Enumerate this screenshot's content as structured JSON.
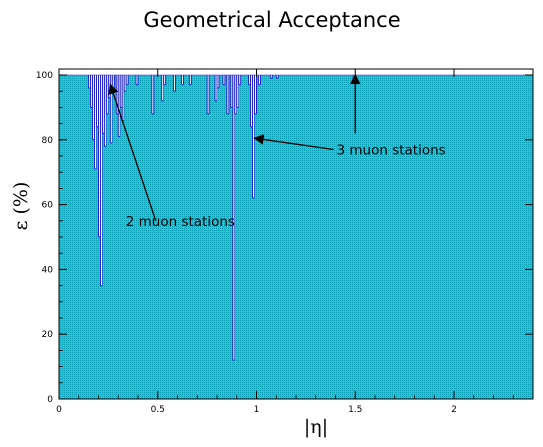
{
  "chart_data": {
    "type": "bar",
    "title": "Geometrical Acceptance",
    "xlabel": "|η|",
    "ylabel": "ε (%)",
    "xlim": [
      0,
      2.4
    ],
    "ylim": [
      0,
      100
    ],
    "x_ticks": [
      0,
      0.5,
      1,
      1.5,
      2
    ],
    "x_tick_labels": [
      "0",
      "0.5",
      "1",
      "1.5",
      "2"
    ],
    "y_ticks": [
      0,
      20,
      40,
      60,
      80,
      100
    ],
    "y_tick_labels": [
      "0",
      "20",
      "40",
      "60",
      "80",
      "100"
    ],
    "bin_width": 0.01,
    "fill_color": "#19c4d8",
    "edge_color": "#2020c8",
    "default_value": 100,
    "dips": [
      {
        "x": 0.15,
        "v": 96
      },
      {
        "x": 0.16,
        "v": 90
      },
      {
        "x": 0.17,
        "v": 80
      },
      {
        "x": 0.18,
        "v": 71
      },
      {
        "x": 0.19,
        "v": 84
      },
      {
        "x": 0.2,
        "v": 50
      },
      {
        "x": 0.21,
        "v": 35
      },
      {
        "x": 0.22,
        "v": 82
      },
      {
        "x": 0.23,
        "v": 78
      },
      {
        "x": 0.24,
        "v": 88
      },
      {
        "x": 0.25,
        "v": 93
      },
      {
        "x": 0.26,
        "v": 79
      },
      {
        "x": 0.27,
        "v": 96
      },
      {
        "x": 0.29,
        "v": 88
      },
      {
        "x": 0.3,
        "v": 81
      },
      {
        "x": 0.31,
        "v": 90
      },
      {
        "x": 0.32,
        "v": 86
      },
      {
        "x": 0.33,
        "v": 95
      },
      {
        "x": 0.34,
        "v": 97
      },
      {
        "x": 0.39,
        "v": 97
      },
      {
        "x": 0.47,
        "v": 88
      },
      {
        "x": 0.52,
        "v": 92
      },
      {
        "x": 0.53,
        "v": 97
      },
      {
        "x": 0.58,
        "v": 95
      },
      {
        "x": 0.62,
        "v": 97
      },
      {
        "x": 0.66,
        "v": 97
      },
      {
        "x": 0.75,
        "v": 88
      },
      {
        "x": 0.79,
        "v": 92
      },
      {
        "x": 0.8,
        "v": 96
      },
      {
        "x": 0.83,
        "v": 97
      },
      {
        "x": 0.85,
        "v": 88
      },
      {
        "x": 0.87,
        "v": 90
      },
      {
        "x": 0.88,
        "v": 12
      },
      {
        "x": 0.89,
        "v": 88
      },
      {
        "x": 0.9,
        "v": 90
      },
      {
        "x": 0.91,
        "v": 97
      },
      {
        "x": 0.96,
        "v": 97
      },
      {
        "x": 0.97,
        "v": 84
      },
      {
        "x": 0.98,
        "v": 62
      },
      {
        "x": 0.99,
        "v": 88
      },
      {
        "x": 1.01,
        "v": 97
      },
      {
        "x": 1.07,
        "v": 99
      },
      {
        "x": 1.1,
        "v": 99
      },
      {
        "x": 1.49,
        "v": 98
      }
    ],
    "annotations": [
      {
        "text": "3 muon stations",
        "label_at": [
          1.39,
          77
        ],
        "arrow_to": [
          0.99,
          80.5
        ]
      },
      {
        "text": "2 muon stations",
        "label_at": [
          0.49,
          55
        ],
        "arrow_to": [
          0.26,
          97
        ]
      },
      {
        "text": "",
        "label_at": [
          1.5,
          82
        ],
        "arrow_to": [
          1.5,
          100
        ]
      }
    ]
  }
}
